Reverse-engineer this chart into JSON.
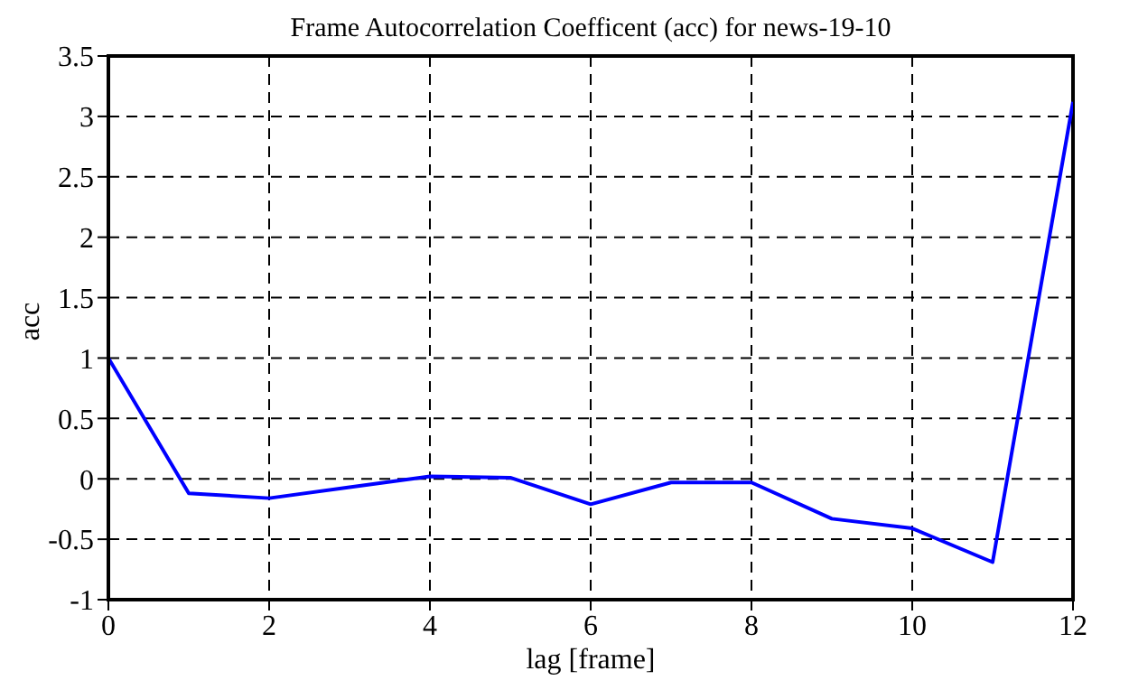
{
  "chart_data": {
    "type": "line",
    "title": "Frame Autocorrelation Coefficent (acc) for news-19-10",
    "xlabel": "lag [frame]",
    "ylabel": "acc",
    "x": [
      0,
      1,
      2,
      3,
      4,
      5,
      6,
      7,
      8,
      9,
      10,
      11,
      12
    ],
    "series": [
      {
        "color": "#0000ff",
        "values": [
          1,
          -0.12,
          -0.16,
          -0.07,
          0.02,
          0.01,
          -0.21,
          -0.03,
          -0.03,
          -0.33,
          -0.41,
          -0.69,
          3.12
        ]
      }
    ],
    "xlim": [
      0,
      12
    ],
    "xticks": [
      0,
      2,
      4,
      6,
      8,
      10,
      12
    ],
    "ylim": [
      -1,
      3.5
    ],
    "yticks": [
      -1,
      -0.5,
      0,
      0.5,
      1,
      1.5,
      2,
      2.5,
      3,
      3.5
    ],
    "grid": true,
    "marker": "none",
    "line_style": "solid"
  }
}
